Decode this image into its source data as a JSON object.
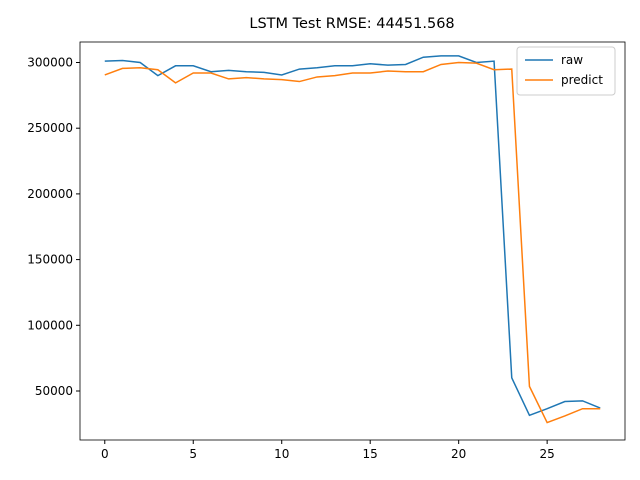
{
  "chart_data": {
    "type": "line",
    "title": "LSTM Test RMSE: 44451.568",
    "x": [
      0,
      1,
      2,
      3,
      4,
      5,
      6,
      7,
      8,
      9,
      10,
      11,
      12,
      13,
      14,
      15,
      16,
      17,
      18,
      19,
      20,
      21,
      22,
      23,
      24,
      25,
      26,
      27,
      28
    ],
    "series": [
      {
        "name": "raw",
        "color": "#1f77b4",
        "values": [
          301000,
          301500,
          300000,
          290000,
          297500,
          297500,
          293000,
          294000,
          293000,
          292500,
          290500,
          295000,
          296000,
          297500,
          297500,
          299000,
          298000,
          298500,
          304000,
          305000,
          305000,
          300000,
          301000,
          60000,
          31500,
          36500,
          42000,
          42500,
          37000
        ]
      },
      {
        "name": "predict",
        "color": "#ff7f0e",
        "values": [
          290500,
          295500,
          296000,
          294500,
          284500,
          292000,
          292000,
          287500,
          288500,
          287500,
          287000,
          285500,
          289000,
          290000,
          292000,
          292000,
          293500,
          293000,
          293000,
          298500,
          300000,
          299500,
          294500,
          295000,
          53500,
          26000,
          31000,
          36500,
          36500
        ]
      }
    ],
    "xlim": [
      -1.4,
      29.4
    ],
    "xticks": [
      0,
      5,
      10,
      15,
      20,
      25
    ],
    "ylim": [
      12700,
      315600
    ],
    "yticks": [
      50000,
      100000,
      150000,
      200000,
      250000,
      300000
    ],
    "legend": "upper right"
  }
}
